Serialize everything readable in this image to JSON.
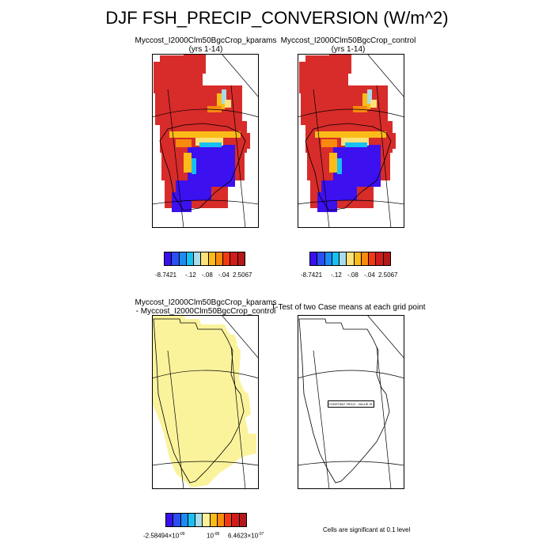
{
  "figure": {
    "title": "DJF FSH_PRECIP_CONVERSION (W/m^2)"
  },
  "panels": {
    "top_left": {
      "title_line1": "Myccost_I2000Clm50BgcCrop_kparams",
      "title_line2": "(yrs 1-14)"
    },
    "top_right": {
      "title_line1": "Myccost_I2000Clm50BgcCrop_control",
      "title_line2": "(yrs 1-14)"
    },
    "bottom_left": {
      "title_line1": "Myccost_I2000Clm50BgcCrop_kparams",
      "title_line2": "- Myccost_I2000Clm50BgcCrop_control"
    },
    "bottom_right": {
      "title": "T-Test of two Case means at each grid point",
      "map_label": "CONSTANT FIELD - VALUE IS 0"
    }
  },
  "colorbars": {
    "top": {
      "labels": [
        "-8.7421",
        "-.12",
        "-.08",
        "-.04",
        "2.5067"
      ],
      "colors": [
        "#3a10ee",
        "#2a4ff2",
        "#1c8cf4",
        "#17c0f2",
        "#a8dce8",
        "#fbe27a",
        "#fcbc18",
        "#fa8a0e",
        "#f23a12",
        "#d21b1b",
        "#b41818"
      ]
    },
    "bottom": {
      "label_left": "-2.58494×10",
      "label_left_exp": "-09",
      "label_mid": "10",
      "label_mid_exp": "-08",
      "label_right": "6.4623×10",
      "label_right_exp": "-07",
      "colors": [
        "#3a10ee",
        "#2a4ff2",
        "#1c8cf4",
        "#17c0f2",
        "#a8dce8",
        "#fbf19a",
        "#fcbc18",
        "#fa8a0e",
        "#f23a12",
        "#d21b1b",
        "#b41818"
      ]
    }
  },
  "footnote": "Cells are significant at 0.1 level",
  "colors": {
    "ice_sheet": "#d72c2a",
    "negative": "#3c10ef",
    "difference": "#fbf39c"
  }
}
